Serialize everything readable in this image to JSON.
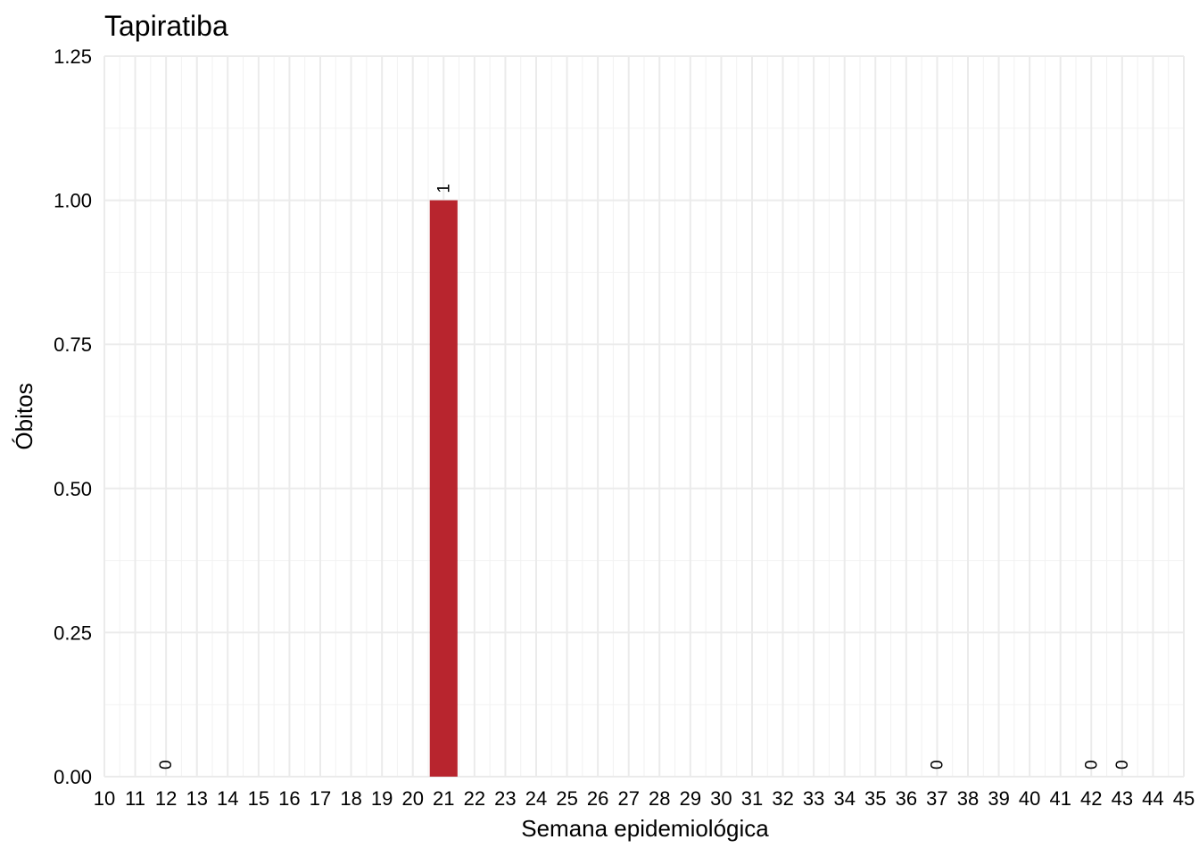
{
  "chart_data": {
    "type": "bar",
    "title": "Tapiratiba",
    "xlabel": "Semana epidemiológica",
    "ylabel": "Óbitos",
    "categories": [
      10,
      11,
      12,
      13,
      14,
      15,
      16,
      17,
      18,
      19,
      20,
      21,
      22,
      23,
      24,
      25,
      26,
      27,
      28,
      29,
      30,
      31,
      32,
      33,
      34,
      35,
      36,
      37,
      38,
      39,
      40,
      41,
      42,
      43,
      44,
      45
    ],
    "bars": [
      {
        "x": 12,
        "value": 0,
        "label": "0"
      },
      {
        "x": 21,
        "value": 1,
        "label": "1"
      },
      {
        "x": 37,
        "value": 0,
        "label": "0"
      },
      {
        "x": 42,
        "value": 0,
        "label": "0"
      },
      {
        "x": 43,
        "value": 0,
        "label": "0"
      }
    ],
    "ylim": [
      0,
      1.25
    ],
    "yticks": [
      "0.00",
      "0.25",
      "0.50",
      "0.75",
      "1.00",
      "1.25"
    ],
    "bar_color": "#B8252E",
    "grid": true,
    "legend": "none"
  }
}
